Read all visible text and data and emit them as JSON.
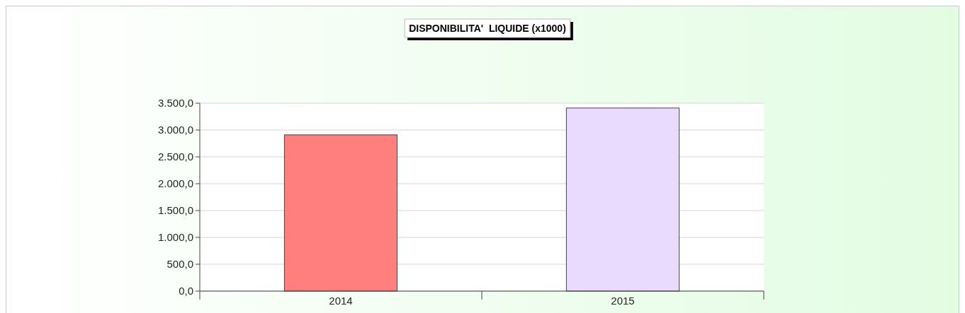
{
  "chart_data": {
    "type": "bar",
    "title": "DISPONIBILITA'  LIQUIDE (x1000)",
    "categories": [
      "2014",
      "2015"
    ],
    "values": [
      2910,
      3410
    ],
    "colors": [
      "#ff7f7f",
      "#e8dbfd"
    ],
    "ylim": [
      0,
      3500
    ],
    "yticks": [
      {
        "value": 0,
        "label": "0,0"
      },
      {
        "value": 500,
        "label": "500,0"
      },
      {
        "value": 1000,
        "label": "1.000,0"
      },
      {
        "value": 1500,
        "label": "1.500,0"
      },
      {
        "value": 2000,
        "label": "2.000,0"
      },
      {
        "value": 2500,
        "label": "2.500,0"
      },
      {
        "value": 3000,
        "label": "3.000,0"
      },
      {
        "value": 3500,
        "label": "3.500,0"
      }
    ],
    "grid": "y"
  }
}
